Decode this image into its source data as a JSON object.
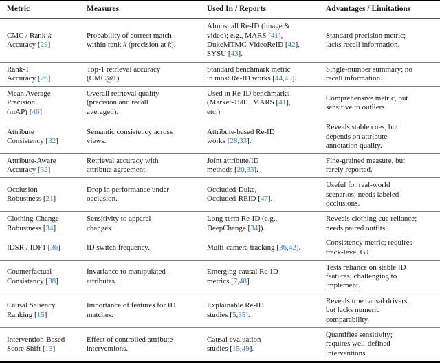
{
  "colors": {
    "citation_link": "#2e7fc1",
    "text": "#1a1a1a",
    "rule_heavy": "#000000",
    "rule_light": "#7f7f7f"
  },
  "table": {
    "columns": [
      "Metric",
      "Measures",
      "Used In / Reports",
      "Advantages / Limitations"
    ],
    "rows": [
      {
        "metric": "CMC / Rank-*k*\nAccuracy [29]",
        "measures": "Probability of correct match\nwithin rank *k* (precision at *k*).",
        "used_in": "Almost all Re-ID (image &\nvideo); e.g., MARS [41],\nDukeMTMC-VideoReID [42],\nSYSU [43].",
        "advantages": "Standard precision metric;\nlacks recall information."
      },
      {
        "metric": "Rank-1\nAccuracy [26]",
        "measures": "Top-1 retrieval accuracy\n(CMC@1).",
        "used_in": "Standard benchmark metric\nin most Re-ID works [44,45].",
        "advantages": "Single-number summary; no\nrecall information."
      },
      {
        "metric": "Mean Average\nPrecision\n(mAP) [46]",
        "measures": "Overall retrieval quality\n(precision and recall\naveraged).",
        "used_in": "Used in Re-ID benchmarks\n(Market-1501, MARS [41],\netc.)",
        "advantages": "Comprehensive metric, but\nsensitive to outliers."
      },
      {
        "metric": "Attribute\nConsistency [32]",
        "measures": "Semantic consistency across\nviews.",
        "used_in": "Attribute-based Re-ID\nworks [28,33].",
        "advantages": "Reveals stable cues, but\ndepends on attribute\nannotation quality."
      },
      {
        "metric": "Attribute-Aware\nAccuracy [32]",
        "measures": "Retrieval accuracy with\nattribute agreement.",
        "used_in": "Joint attribute/ID\nmethods [20,33].",
        "advantages": "Fine-grained measure, but\nrarely reported."
      },
      {
        "metric": "Occlusion\nRobustness [21]",
        "measures": "Drop in performance under\nocclusion.",
        "used_in": "Occluded-Duke,\nOccluded-REID [47].",
        "advantages": "Useful for real-world\nscenarios; needs labeled\nocclusions."
      },
      {
        "metric": "Clothing-Change\nRobustness [34]",
        "measures": "Sensitivity to apparel\nchanges.",
        "used_in": "Long-term Re-ID (e.g.,\nDeepChange [34]).",
        "advantages": "Reveals clothing cue reliance;\nneeds paired outfits."
      },
      {
        "metric": "IDSR / IDF1 [36]",
        "measures": "ID switch frequency.",
        "used_in": "Multi-camera tracking [36,42].",
        "advantages": "Consistency metric; requires\ntrack-level GT."
      },
      {
        "metric": "Counterfactual\nConsistency [38]",
        "measures": "Invariance to manipulated\nattributes.",
        "used_in": "Emerging causal Re-ID\nmetrics [7,48].",
        "advantages": "Tests reliance on stable ID\nfeatures; challenging to\nimplement."
      },
      {
        "metric": "Causal Saliency\nRanking [15]",
        "measures": "Importance of features for ID\nmatches.",
        "used_in": "Explainable Re-ID\nstudies [5,35].",
        "advantages": "Reveals true causal drivers,\nbut lacks numeric\ncomparability."
      },
      {
        "metric": "Intervention-Based\nScore Shift [13]",
        "measures": "Effect of controlled attribute\ninterventions.",
        "used_in": "Causal evaluation\nstudies [15,49].",
        "advantages": "Quantifies sensitivity;\nrequires well-defined\ninterventions."
      }
    ]
  }
}
